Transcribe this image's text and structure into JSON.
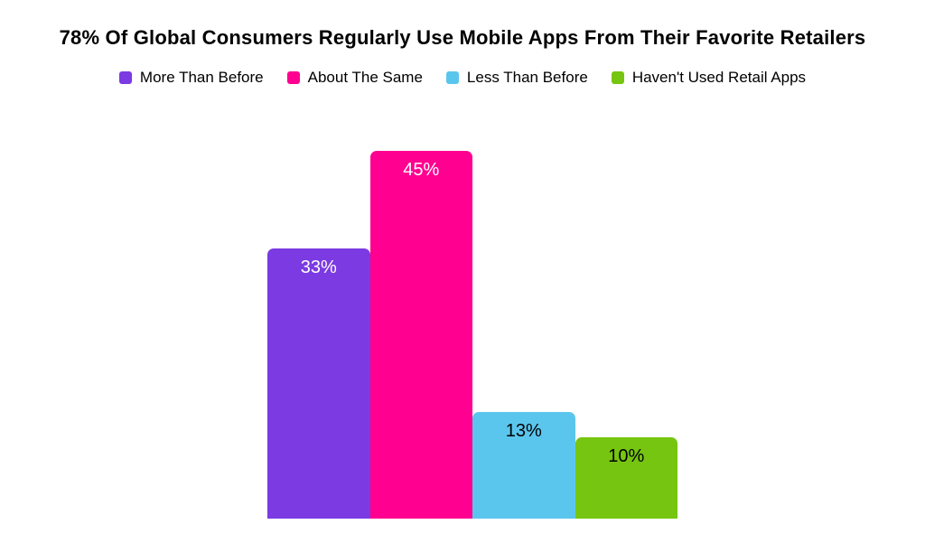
{
  "chart_data": {
    "type": "bar",
    "title": "78% Of Global Consumers Regularly Use Mobile Apps From Their Favorite Retailers",
    "categories": [
      "More Than Before",
      "About The Same",
      "Less Than Before",
      "Haven't Used Retail Apps"
    ],
    "values": [
      33,
      45,
      13,
      10
    ],
    "value_labels": [
      "33%",
      "45%",
      "13%",
      "10%"
    ],
    "colors": [
      "#7B3AE2",
      "#FF0090",
      "#5BC6ED",
      "#76C511"
    ],
    "value_label_colors": [
      "#FFFFFF",
      "#FFFFFF",
      "#000000",
      "#000000"
    ],
    "xlabel": "",
    "ylabel": "",
    "ylim": [
      0,
      50
    ],
    "grid": false,
    "axes_visible": false,
    "legend_position": "top-center"
  }
}
